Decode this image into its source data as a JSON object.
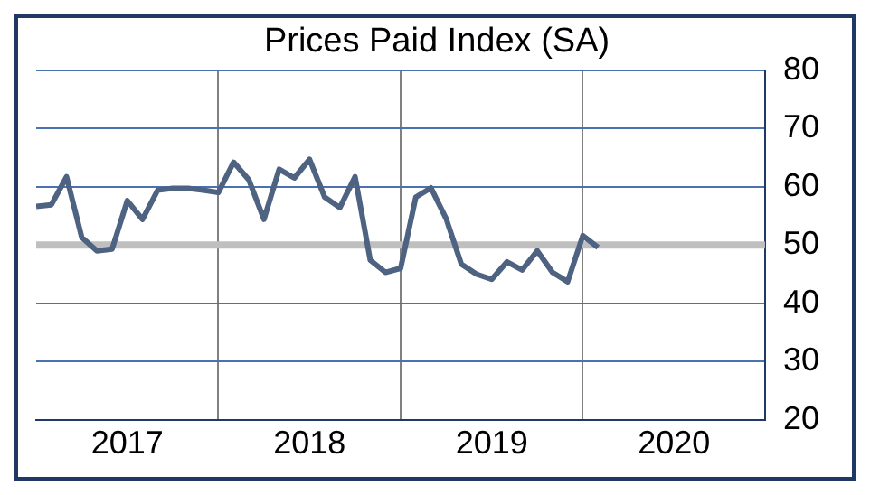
{
  "chart_data": {
    "type": "line",
    "title": "Prices Paid Index (SA)",
    "x": [
      "2017-01",
      "2017-02",
      "2017-03",
      "2017-04",
      "2017-05",
      "2017-06",
      "2017-07",
      "2017-08",
      "2017-09",
      "2017-10",
      "2017-11",
      "2017-12",
      "2018-01",
      "2018-02",
      "2018-03",
      "2018-04",
      "2018-05",
      "2018-06",
      "2018-07",
      "2018-08",
      "2018-09",
      "2018-10",
      "2018-11",
      "2018-12",
      "2019-01",
      "2019-02",
      "2019-03",
      "2019-04",
      "2019-05",
      "2019-06",
      "2019-07",
      "2019-08",
      "2019-09",
      "2019-10",
      "2019-11",
      "2019-12",
      "2020-01",
      "2020-02"
    ],
    "series": [
      {
        "color": "#4e6282",
        "values": [
          56.6,
          56.9,
          61.7,
          51.3,
          49,
          49.3,
          57.6,
          54.4,
          59.4,
          59.7,
          59.7,
          59.4,
          59,
          64.2,
          61.2,
          54.4,
          63,
          61.5,
          64.7,
          58.2,
          56.4,
          61.7,
          47.4,
          45.3,
          46,
          58.2,
          59.8,
          54.5,
          46.7,
          45,
          44.1,
          47.1,
          45.7,
          49,
          45.3,
          43.7,
          51.6,
          49.6
        ]
      }
    ],
    "xlim": [
      "2017-01",
      "2021-01"
    ],
    "xticks": [
      {
        "value": "2017-07",
        "label": "2017"
      },
      {
        "value": "2018-01",
        "label": null
      },
      {
        "value": "2018-07",
        "label": "2018"
      },
      {
        "value": "2019-01",
        "label": null
      },
      {
        "value": "2019-07",
        "label": "2019"
      },
      {
        "value": "2020-01",
        "label": null
      },
      {
        "value": "2020-07",
        "label": "2020"
      }
    ],
    "ylim": [
      20,
      80
    ],
    "yticks": [
      20,
      30,
      40,
      50,
      60,
      70,
      80
    ],
    "ref_lines": [
      {
        "axis": "y",
        "value": 50,
        "color": "#bfbfbf"
      }
    ],
    "grid": true,
    "legend": false,
    "marker": "none",
    "line_style": "solid"
  }
}
